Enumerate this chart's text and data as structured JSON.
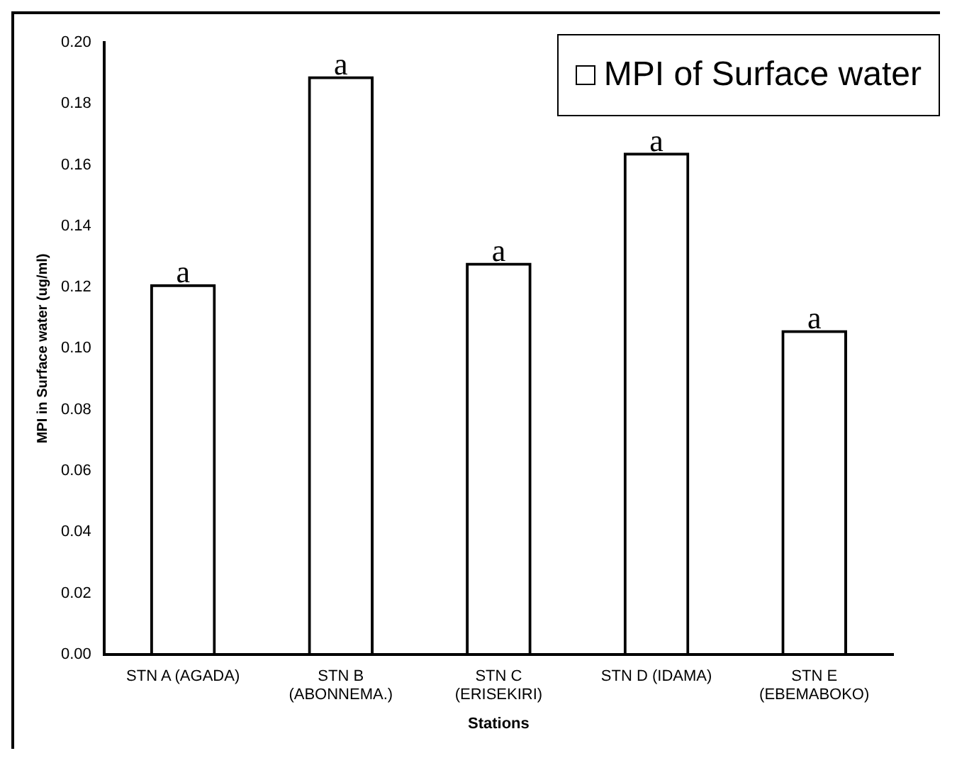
{
  "chart_data": {
    "type": "bar",
    "categories": [
      "STN A (AGADA)",
      "STN B (ABONNEMA.)",
      "STN C (ERISEKIRI)",
      "STN D (IDAMA)",
      "STN E (EBEMABOKO)"
    ],
    "series": [
      {
        "name": "MPI of Surface water",
        "color": "#000000",
        "values": [
          0.121,
          0.189,
          0.128,
          0.164,
          0.106
        ]
      }
    ],
    "xlabel": "Stations",
    "ylabel": "MPI in Surface water (ug/ml)",
    "ylim": [
      0,
      0.2
    ],
    "yticks": [
      {
        "value": 0,
        "label": "0.00"
      },
      {
        "value": 0.02,
        "label": "0.02"
      },
      {
        "value": 0.04,
        "label": "0.04"
      },
      {
        "value": 0.06,
        "label": "0.06"
      },
      {
        "value": 0.08,
        "label": "0.08"
      },
      {
        "value": 0.1,
        "label": "0.10"
      },
      {
        "value": 0.12,
        "label": "0.12"
      },
      {
        "value": 0.14,
        "label": "0.14"
      },
      {
        "value": 0.16,
        "label": "0.16"
      },
      {
        "value": 0.18,
        "label": "0.18"
      },
      {
        "value": 0.2,
        "label": "0.20"
      }
    ],
    "annotations": [
      {
        "text": "a",
        "x": "STN A (AGADA)",
        "y": 0.121
      },
      {
        "text": "a",
        "x": "STN B (ABONNEMA.)",
        "y": 0.189
      },
      {
        "text": "a",
        "x": "STN C (ERISEKIRI)",
        "y": 0.128
      },
      {
        "text": "a",
        "x": "STN D (IDAMA)",
        "y": 0.164
      },
      {
        "text": "a",
        "x": "STN E (EBEMABOKO)",
        "y": 0.106
      }
    ],
    "grid": false,
    "legend": "top right"
  }
}
